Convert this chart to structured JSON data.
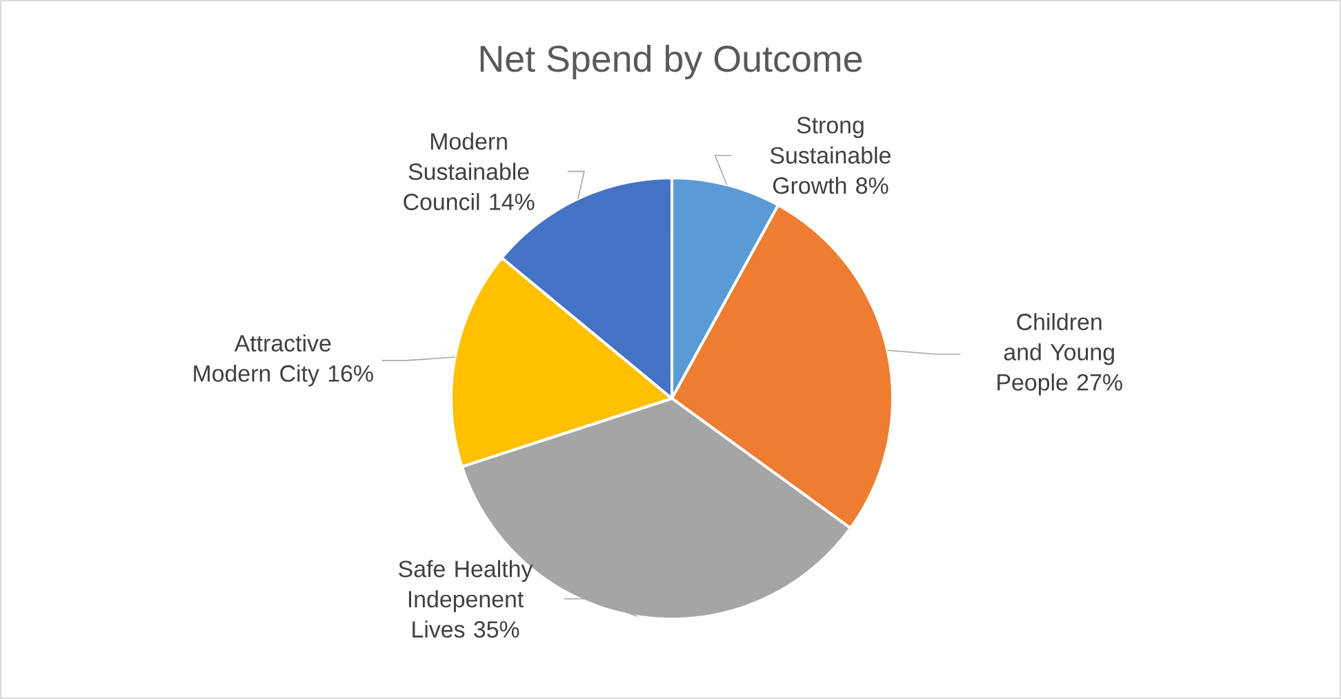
{
  "chart_data": {
    "type": "pie",
    "title": "Net Spend by Outcome",
    "categories": [
      "Strong Sustainable Growth",
      "Children and Young People",
      "Safe Healthy Indepenent Lives",
      "Attractive Modern City",
      "Modern Sustainable Council"
    ],
    "values": [
      8,
      27,
      35,
      16,
      14
    ],
    "value_labels": [
      "8%",
      "27%",
      "35%",
      "16%",
      "14%"
    ],
    "colors": [
      "#5b9bd5",
      "#ed7d31",
      "#a5a5a5",
      "#ffc000",
      "#4472c4"
    ]
  }
}
